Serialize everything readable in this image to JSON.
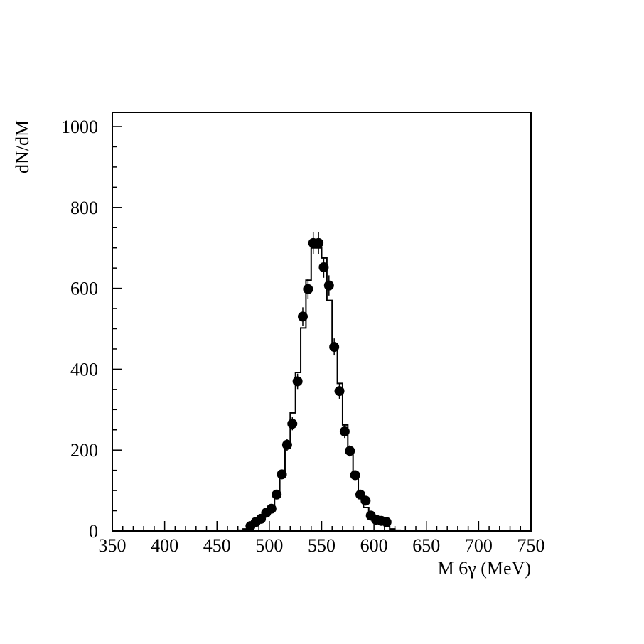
{
  "chart_data": {
    "type": "histogram",
    "xlabel": "M 6γ (MeV)",
    "ylabel": "dN/dM",
    "xlim": [
      350,
      750
    ],
    "ylim": [
      0,
      1040
    ],
    "x_ticks": [
      350,
      400,
      450,
      500,
      550,
      600,
      650,
      700,
      750
    ],
    "y_ticks": [
      0,
      200,
      400,
      600,
      800,
      1000
    ],
    "grid": false,
    "legend": "none",
    "histogram": {
      "bin_edges": [
        470,
        475,
        480,
        485,
        490,
        495,
        500,
        505,
        510,
        515,
        520,
        525,
        530,
        535,
        540,
        545,
        550,
        555,
        560,
        565,
        570,
        575,
        580,
        585,
        590,
        595,
        600,
        605,
        610,
        615,
        620,
        625
      ],
      "values": [
        2,
        5,
        12,
        20,
        30,
        42,
        55,
        90,
        135,
        205,
        292,
        392,
        502,
        620,
        700,
        700,
        675,
        570,
        460,
        365,
        262,
        195,
        132,
        80,
        58,
        38,
        25,
        18,
        12,
        5,
        2
      ]
    },
    "points": {
      "x": [
        482,
        487,
        492,
        497,
        502,
        507,
        512,
        517,
        522,
        527,
        532,
        537,
        542,
        547,
        552,
        557,
        562,
        567,
        572,
        577,
        582,
        587,
        592,
        597,
        602,
        607,
        612
      ],
      "y": [
        12,
        22,
        30,
        45,
        55,
        90,
        140,
        213,
        265,
        370,
        530,
        598,
        712,
        712,
        652,
        607,
        455,
        346,
        246,
        198,
        138,
        90,
        75,
        38,
        28,
        25,
        22
      ],
      "yerr": [
        4,
        5,
        6,
        7,
        8,
        10,
        12,
        15,
        16,
        19,
        23,
        25,
        27,
        27,
        26,
        25,
        21,
        19,
        16,
        14,
        12,
        10,
        9,
        6,
        5,
        5,
        5
      ]
    }
  }
}
